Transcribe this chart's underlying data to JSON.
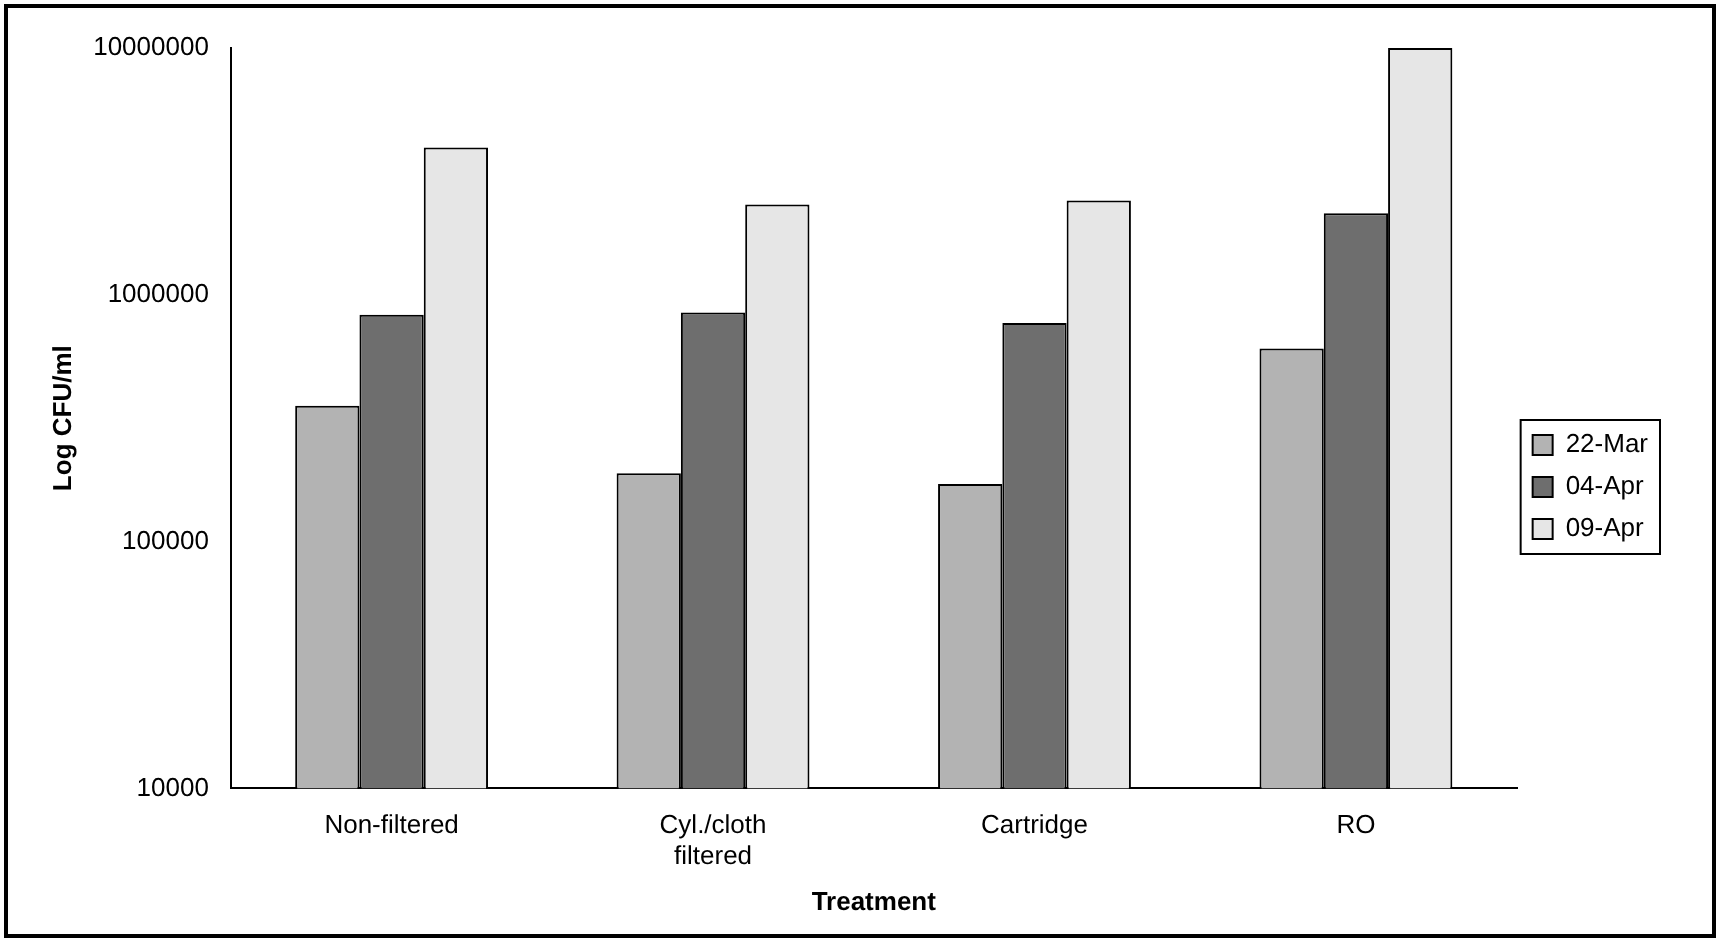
{
  "chart_data": {
    "type": "bar",
    "xlabel": "Treatment",
    "ylabel": "Log CFU/ml",
    "categories": [
      "Non-filtered",
      "Cyl./cloth filtered",
      "Cartridge",
      "RO"
    ],
    "series": [
      {
        "name": "22-Mar",
        "color": "#b3b3b3",
        "values": [
          355000,
          189000,
          171000,
          606000
        ]
      },
      {
        "name": "04-Apr",
        "color": "#6e6e6e",
        "values": [
          830000,
          847000,
          768000,
          2140000
        ]
      },
      {
        "name": "09-Apr",
        "color": "#e6e6e6",
        "values": [
          3950000,
          2320000,
          2410000,
          10000000
        ]
      }
    ],
    "log": "y",
    "ylim": [
      10000,
      10000000
    ],
    "yticks": [
      10000,
      100000,
      1000000,
      10000000
    ],
    "grid": false,
    "legend": "right"
  }
}
